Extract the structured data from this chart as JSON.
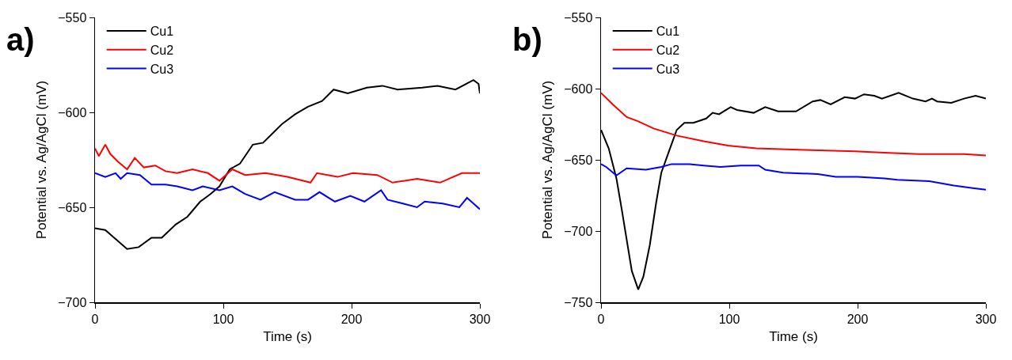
{
  "chart_data": [
    {
      "type": "line",
      "xlabel": "Time (s)",
      "ylabel": "Potential vs. Ag/AgCl (mV)",
      "annotations": [
        "a)"
      ],
      "xlim": [
        0,
        300
      ],
      "xticks": [
        0,
        100,
        200,
        300
      ],
      "ylim": [
        -700,
        -550
      ],
      "yticks": [
        -700,
        -650,
        -600,
        -550
      ],
      "grid": false,
      "legend": "top left",
      "series": [
        {
          "name": "Cu1",
          "color": "#000000",
          "x": [
            0,
            8,
            25,
            34,
            44,
            52,
            63,
            72,
            82,
            90,
            97,
            105,
            113,
            123,
            131,
            140,
            146,
            156,
            166,
            177,
            186,
            197,
            212,
            224,
            236,
            255,
            267,
            281,
            295,
            299,
            300
          ],
          "values": [
            -661,
            -662,
            -672,
            -671,
            -666,
            -666,
            -659,
            -655,
            -647,
            -643,
            -639,
            -630,
            -627,
            -617,
            -616,
            -610,
            -606,
            -601,
            -597,
            -594,
            -588,
            -590,
            -587,
            -586,
            -588,
            -587,
            -586,
            -588,
            -583,
            -585,
            -590
          ]
        },
        {
          "name": "Cu2",
          "color": "#ff0000",
          "x": [
            0,
            3,
            8,
            12,
            18,
            25,
            31,
            38,
            47,
            55,
            64,
            76,
            88,
            97,
            107,
            117,
            133,
            150,
            168,
            173,
            189,
            201,
            220,
            232,
            251,
            269,
            286,
            300
          ],
          "values": [
            -619,
            -623,
            -617,
            -622,
            -626,
            -630,
            -624,
            -629,
            -628,
            -631,
            -632,
            -630,
            -632,
            -636,
            -630,
            -633,
            -632,
            -634,
            -637,
            -632,
            -634,
            -632,
            -633,
            -637,
            -635,
            -637,
            -632,
            -632
          ]
        },
        {
          "name": "Cu3",
          "color": "#0000ff",
          "x": [
            0,
            8,
            16,
            20,
            25,
            35,
            44,
            55,
            64,
            76,
            84,
            97,
            107,
            117,
            129,
            140,
            156,
            166,
            175,
            187,
            199,
            210,
            223,
            228,
            240,
            251,
            257,
            271,
            284,
            290,
            300
          ],
          "values": [
            -632,
            -634,
            -632,
            -635,
            -632,
            -633,
            -638,
            -638,
            -639,
            -641,
            -639,
            -641,
            -639,
            -643,
            -646,
            -642,
            -646,
            -646,
            -642,
            -647,
            -644,
            -647,
            -641,
            -646,
            -648,
            -650,
            -647,
            -648,
            -650,
            -645,
            -651
          ]
        }
      ]
    },
    {
      "type": "line",
      "xlabel": "Time (s)",
      "ylabel": "Potential vs. Ag/AgCl (mV)",
      "annotations": [
        "b)"
      ],
      "xlim": [
        0,
        300
      ],
      "xticks": [
        0,
        100,
        200,
        300
      ],
      "ylim": [
        -750,
        -550
      ],
      "yticks": [
        -750,
        -700,
        -650,
        -600,
        -550
      ],
      "grid": false,
      "legend": "top left",
      "series": [
        {
          "name": "Cu1",
          "color": "#000000",
          "x": [
            0,
            6,
            12,
            16,
            20,
            24,
            29,
            33,
            38,
            43,
            47,
            53,
            59,
            65,
            72,
            82,
            87,
            92,
            101,
            106,
            119,
            128,
            138,
            152,
            165,
            171,
            179,
            190,
            198,
            205,
            213,
            219,
            232,
            243,
            253,
            258,
            262,
            273,
            283,
            292,
            300
          ],
          "values": [
            -629,
            -642,
            -663,
            -684,
            -706,
            -728,
            -741,
            -732,
            -710,
            -680,
            -659,
            -644,
            -629,
            -624,
            -624,
            -621,
            -617,
            -618,
            -613,
            -615,
            -617,
            -613,
            -616,
            -616,
            -609,
            -608,
            -611,
            -606,
            -607,
            -604,
            -605,
            -607,
            -603,
            -607,
            -609,
            -607,
            -609,
            -610,
            -607,
            -605,
            -607
          ]
        },
        {
          "name": "Cu2",
          "color": "#ff0000",
          "x": [
            0,
            9,
            20,
            29,
            41,
            59,
            80,
            99,
            121,
            159,
            198,
            221,
            248,
            283,
            300
          ],
          "values": [
            -603,
            -611,
            -620,
            -623,
            -628,
            -633,
            -637,
            -640,
            -642,
            -643,
            -644,
            -645,
            -646,
            -646,
            -647
          ]
        },
        {
          "name": "Cu3",
          "color": "#0000ff",
          "x": [
            0,
            4,
            12,
            20,
            35,
            47,
            55,
            69,
            80,
            93,
            109,
            123,
            128,
            142,
            169,
            183,
            200,
            221,
            231,
            256,
            275,
            291,
            300
          ],
          "values": [
            -653,
            -655,
            -661,
            -656,
            -657,
            -655,
            -653,
            -653,
            -654,
            -655,
            -654,
            -654,
            -657,
            -659,
            -660,
            -662,
            -662,
            -663,
            -664,
            -665,
            -668,
            -670,
            -671
          ]
        }
      ]
    }
  ]
}
